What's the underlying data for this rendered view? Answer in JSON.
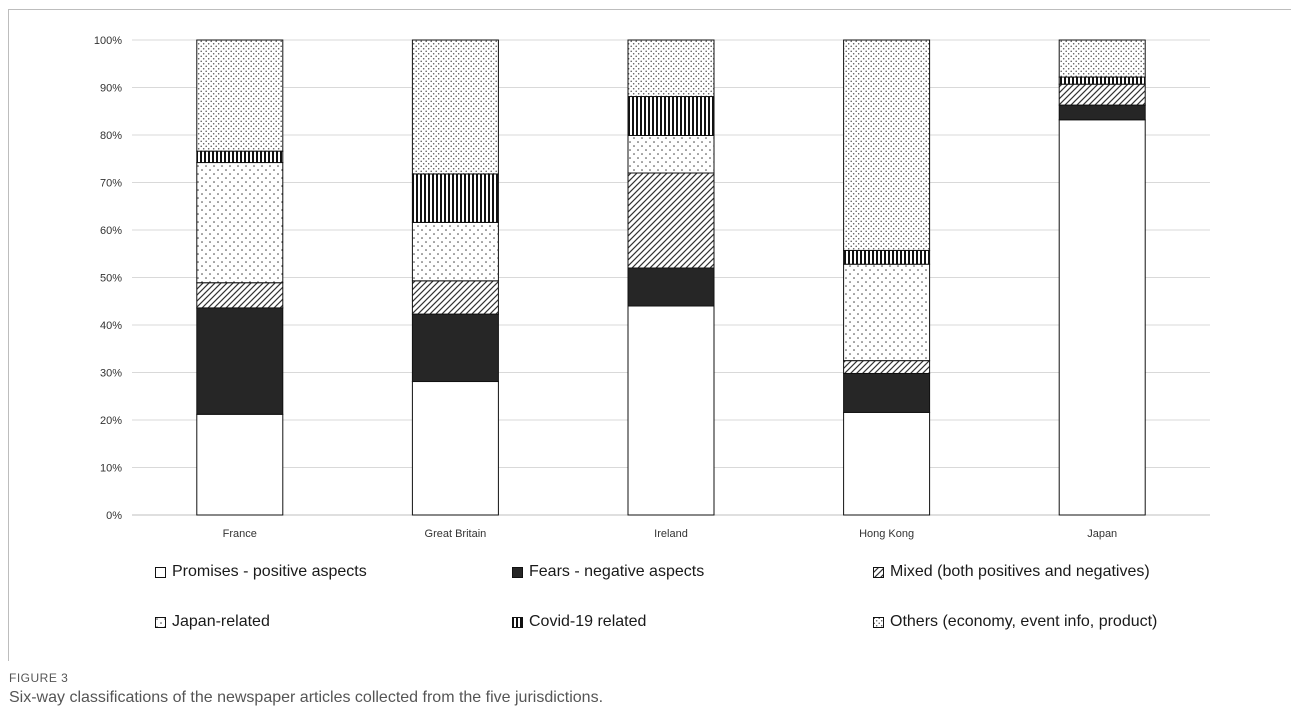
{
  "figure": {
    "label": "FIGURE 3",
    "caption": "Six-way classifications of the newspaper articles collected from the five jurisdictions."
  },
  "chart_data": {
    "type": "bar",
    "stacked": true,
    "categories": [
      "France",
      "Great Britain",
      "Ireland",
      "Hong Kong",
      "Japan"
    ],
    "y_ticks": [
      "0%",
      "10%",
      "20%",
      "30%",
      "40%",
      "50%",
      "60%",
      "70%",
      "80%",
      "90%",
      "100%"
    ],
    "ylim": [
      0,
      100
    ],
    "grid": true,
    "legend_position": "bottom",
    "series": [
      {
        "name": "Promises - positive aspects",
        "pattern": "solid-white",
        "values": [
          21.2,
          28.1,
          44.0,
          21.6,
          83.2
        ]
      },
      {
        "name": "Fears - negative aspects",
        "pattern": "solid-black",
        "values": [
          22.4,
          14.2,
          8.0,
          8.2,
          3.1
        ]
      },
      {
        "name": "Mixed (both positives and negatives)",
        "pattern": "diagonal-hatch",
        "values": [
          5.3,
          7.0,
          20.0,
          2.7,
          4.4
        ]
      },
      {
        "name": "Japan-related",
        "pattern": "sparse-dots",
        "values": [
          25.3,
          12.3,
          7.9,
          20.3,
          0.0
        ]
      },
      {
        "name": "Covid-19 related",
        "pattern": "vertical-stripes",
        "values": [
          2.4,
          10.2,
          8.2,
          2.9,
          1.5
        ]
      },
      {
        "name": "Others (economy, event info, product)",
        "pattern": "dense-dots",
        "values": [
          23.4,
          28.2,
          11.9,
          44.3,
          7.8
        ]
      }
    ]
  }
}
